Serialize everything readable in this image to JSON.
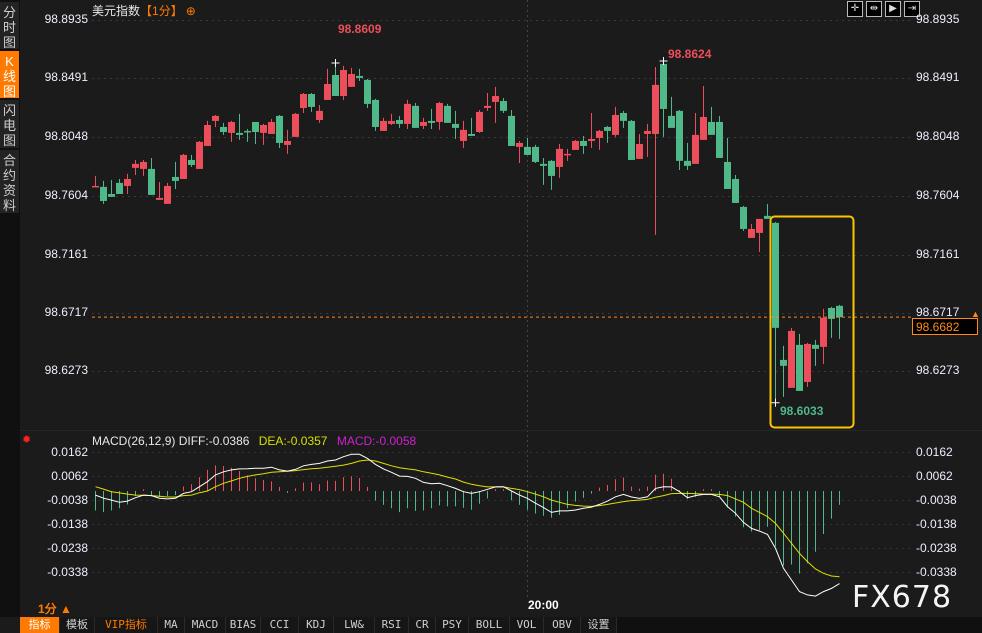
{
  "sidebar": {
    "tabs": [
      {
        "label": "分时图",
        "active": false
      },
      {
        "label": "K线图",
        "active": true
      },
      {
        "label": "闪电图",
        "active": false
      },
      {
        "label": "合约资料",
        "active": false
      }
    ]
  },
  "header": {
    "symbol": "美元指数",
    "timeframe": "【1分】",
    "add_icon": "⊕"
  },
  "toolbar_icons": [
    "crosshair-icon",
    "zoom-range-icon",
    "play-forward-icon",
    "jump-end-icon"
  ],
  "price_axis": {
    "ticks": [
      "98.8935",
      "98.8491",
      "98.8048",
      "98.7604",
      "98.7161",
      "98.6717",
      "98.6273"
    ]
  },
  "current_price": "98.6682",
  "annotations": {
    "high1": "98.8609",
    "high2": "98.8624",
    "low": "98.6033"
  },
  "colors": {
    "up": "#ec4f5b",
    "down": "#4fb98a",
    "highlight_box": "#ffc400",
    "accent": "#ff7a00",
    "diff": "#ffffff",
    "dea": "#e0e000"
  },
  "candles": [
    [
      98.767,
      98.7753,
      98.767,
      98.7677
    ],
    [
      98.767,
      98.7715,
      98.7541,
      98.7563
    ],
    [
      98.7616,
      98.7723,
      98.7594,
      98.7594
    ],
    [
      98.77,
      98.773,
      98.7616,
      98.7616
    ],
    [
      98.7677,
      98.7768,
      98.7616,
      98.773
    ],
    [
      98.7814,
      98.7874,
      98.776,
      98.7844
    ],
    [
      98.7806,
      98.7874,
      98.7753,
      98.7859
    ],
    [
      98.7806,
      98.7889,
      98.7609,
      98.7609
    ],
    [
      98.7571,
      98.7707,
      98.7571,
      98.7586
    ],
    [
      98.7541,
      98.77,
      98.7541,
      98.7677
    ],
    [
      98.7745,
      98.7859,
      98.7654,
      98.7715
    ],
    [
      98.773,
      98.792,
      98.773,
      98.7912
    ],
    [
      98.7874,
      98.7912,
      98.7821,
      98.7836
    ],
    [
      98.7806,
      98.8018,
      98.7806,
      98.8011
    ],
    [
      98.798,
      98.817,
      98.798,
      98.8139
    ],
    [
      98.817,
      98.8215,
      98.8124,
      98.8208
    ],
    [
      98.8124,
      98.8155,
      98.8064,
      98.8086
    ],
    [
      98.8079,
      98.817,
      98.8011,
      98.8162
    ],
    [
      98.8079,
      98.8223,
      98.8026,
      98.8064
    ],
    [
      98.8094,
      98.8109,
      98.8011,
      98.8086
    ],
    [
      98.8162,
      98.8162,
      98.7995,
      98.8086
    ],
    [
      98.8079,
      98.8147,
      98.7988,
      98.8139
    ],
    [
      98.8071,
      98.8185,
      98.8071,
      98.8162
    ],
    [
      98.8208,
      98.8215,
      98.7965,
      98.8003
    ],
    [
      98.7988,
      98.8102,
      98.792,
      98.8018
    ],
    [
      98.8049,
      98.823,
      98.8049,
      98.8223
    ],
    [
      98.8268,
      98.8382,
      98.823,
      98.8374
    ],
    [
      98.8374,
      98.8382,
      98.8238,
      98.8276
    ],
    [
      98.8177,
      98.8291,
      98.8155,
      98.8246
    ],
    [
      98.8329,
      98.8564,
      98.8329,
      98.845
    ],
    [
      98.8518,
      98.8609,
      98.8359,
      98.8359
    ],
    [
      98.8359,
      98.8587,
      98.8329,
      98.8556
    ],
    [
      98.8428,
      98.8572,
      98.8428,
      98.8526
    ],
    [
      98.8511,
      98.8564,
      98.8473,
      98.8496
    ],
    [
      98.8481,
      98.8488,
      98.8268,
      98.8299
    ],
    [
      98.8329,
      98.8337,
      98.8094,
      98.8124
    ],
    [
      98.8094,
      98.8193,
      98.8094,
      98.817
    ],
    [
      98.8147,
      98.8223,
      98.8139,
      98.817
    ],
    [
      98.8177,
      98.8208,
      98.8117,
      98.8147
    ],
    [
      98.8147,
      98.8329,
      98.8109,
      98.8299
    ],
    [
      98.8284,
      98.8306,
      98.8117,
      98.8117
    ],
    [
      98.8132,
      98.8193,
      98.8109,
      98.8162
    ],
    [
      98.817,
      98.8261,
      98.8109,
      98.8155
    ],
    [
      98.8162,
      98.8314,
      98.8102,
      98.8306
    ],
    [
      98.8284,
      98.8299,
      98.8155,
      98.8155
    ],
    [
      98.8147,
      98.8246,
      98.8033,
      98.8117
    ],
    [
      98.8018,
      98.817,
      98.7965,
      98.8102
    ],
    [
      98.8071,
      98.8193,
      98.8056,
      98.8056
    ],
    [
      98.8086,
      98.8253,
      98.8079,
      98.8238
    ],
    [
      98.8268,
      98.8382,
      98.8246,
      98.8284
    ],
    [
      98.8314,
      98.8428,
      98.8155,
      98.8359
    ],
    [
      98.8321,
      98.8344,
      98.823,
      98.8246
    ],
    [
      98.8208,
      98.8253,
      98.798,
      98.798
    ],
    [
      98.7973,
      98.8018,
      98.7851,
      98.8003
    ],
    [
      98.7973,
      98.8041,
      98.7912,
      98.7912
    ],
    [
      98.7973,
      98.7988,
      98.7851,
      98.7859
    ],
    [
      98.7844,
      98.7889,
      98.7685,
      98.7829
    ],
    [
      98.7867,
      98.7874,
      98.7647,
      98.7753
    ],
    [
      98.7821,
      98.7995,
      98.7738,
      98.7958
    ],
    [
      98.7912,
      98.7958,
      98.7867,
      98.792
    ],
    [
      98.795,
      98.8026,
      98.795,
      98.8018
    ],
    [
      98.8018,
      98.8056,
      98.792,
      98.798
    ],
    [
      98.8018,
      98.823,
      98.7965,
      98.8033
    ],
    [
      98.8041,
      98.8102,
      98.795,
      98.8094
    ],
    [
      98.8124,
      98.8132,
      98.8003,
      98.8094
    ],
    [
      98.8064,
      98.8276,
      98.8049,
      98.8215
    ],
    [
      98.823,
      98.8246,
      98.8117,
      98.817
    ],
    [
      98.817,
      98.8177,
      98.7874,
      98.7874
    ],
    [
      98.7882,
      98.8071,
      98.7882,
      98.7995
    ],
    [
      98.8071,
      98.8147,
      98.7897,
      98.8094
    ],
    [
      98.8071,
      98.8579,
      98.7306,
      98.8443
    ],
    [
      98.8602,
      98.8624,
      98.8049,
      98.8261
    ],
    [
      98.8208,
      98.8352,
      98.8117,
      98.8117
    ],
    [
      98.8246,
      98.8253,
      98.7798,
      98.7867
    ],
    [
      98.7867,
      98.8003,
      98.7798,
      98.7829
    ],
    [
      98.7844,
      98.823,
      98.7844,
      98.8064
    ],
    [
      98.8026,
      98.8435,
      98.8026,
      98.82
    ],
    [
      98.8162,
      98.8276,
      98.8064,
      98.8064
    ],
    [
      98.8162,
      98.8208,
      98.7889,
      98.7889
    ],
    [
      98.7859,
      98.8041,
      98.7654,
      98.7654
    ],
    [
      98.773,
      98.776,
      98.7548,
      98.7548
    ],
    [
      98.7518,
      98.7526,
      98.7336,
      98.7351
    ],
    [
      98.7283,
      98.7389,
      98.7283,
      98.7351
    ],
    [
      98.7321,
      98.7427,
      98.7177,
      98.7427
    ],
    [
      98.745,
      98.7541,
      98.7427,
      98.7427
    ],
    [
      98.7397,
      98.7404,
      98.6033,
      98.6601
    ],
    [
      98.6358,
      98.6464,
      98.6078,
      98.6313
    ],
    [
      98.6146,
      98.6601,
      98.6146,
      98.6578
    ],
    [
      98.6472,
      98.6555,
      98.6123,
      98.6123
    ],
    [
      98.6191,
      98.6487,
      98.6154,
      98.6479
    ],
    [
      98.6472,
      98.651,
      98.6313,
      98.6442
    ],
    [
      98.6457,
      98.6745,
      98.6328,
      98.6677
    ],
    [
      98.6752,
      98.676,
      98.6525,
      98.6669
    ],
    [
      98.6768,
      98.6775,
      98.6517,
      98.6682
    ]
  ],
  "macd": {
    "label": "MACD(26,12,9)",
    "diff_label": "DIFF:-0.0386",
    "dea_label": "DEA:-0.0357",
    "macd_label": "MACD:-0.0058",
    "ticks": [
      "0.0162",
      "0.0062",
      "-0.0038",
      "-0.0138",
      "-0.0238",
      "-0.0338"
    ],
    "diff": [
      -0.0017,
      -0.003,
      -0.0038,
      -0.0047,
      -0.0042,
      -0.0028,
      -0.0017,
      -0.0019,
      -0.003,
      -0.0033,
      -0.003,
      -0.001,
      -0.0003,
      0.0018,
      0.0039,
      0.0067,
      0.008,
      0.0088,
      0.0092,
      0.0093,
      0.0095,
      0.0095,
      0.0099,
      0.0088,
      0.0083,
      0.009,
      0.0105,
      0.0111,
      0.0115,
      0.0125,
      0.0129,
      0.0143,
      0.0153,
      0.0153,
      0.0136,
      0.0111,
      0.0092,
      0.0078,
      0.0062,
      0.0061,
      0.0053,
      0.0036,
      0.003,
      0.0032,
      0.0022,
      0.0011,
      -0.0003,
      -0.001,
      -0.0003,
      0.0007,
      0.0017,
      0.0018,
      0.0,
      -0.0017,
      -0.0031,
      -0.0051,
      -0.0069,
      -0.0089,
      -0.0083,
      -0.0083,
      -0.0079,
      -0.0072,
      -0.0067,
      -0.0056,
      -0.0042,
      -0.0024,
      -0.0014,
      -0.0025,
      -0.0031,
      -0.0024,
      0.0011,
      0.0018,
      0.0017,
      -0.0003,
      -0.0028,
      -0.0019,
      -0.0014,
      -0.0014,
      -0.0024,
      -0.0065,
      -0.0093,
      -0.0131,
      -0.0156,
      -0.0167,
      -0.0181,
      -0.0239,
      -0.0322,
      -0.0371,
      -0.0419,
      -0.0433,
      -0.0438,
      -0.0419,
      -0.0406,
      -0.0386
    ],
    "dea": [
      0.0018,
      0.0008,
      -0.0003,
      -0.0008,
      -0.0013,
      -0.0017,
      -0.0018,
      -0.0019,
      -0.0022,
      -0.0025,
      -0.0025,
      -0.0019,
      -0.0017,
      -0.0007,
      0.0,
      0.0018,
      0.0032,
      0.0042,
      0.0053,
      0.0061,
      0.0067,
      0.0072,
      0.0078,
      0.008,
      0.0082,
      0.0085,
      0.0089,
      0.0093,
      0.0095,
      0.0099,
      0.0103,
      0.0108,
      0.0115,
      0.0125,
      0.0129,
      0.0125,
      0.0115,
      0.0105,
      0.0097,
      0.0092,
      0.0088,
      0.008,
      0.0074,
      0.0067,
      0.0058,
      0.005,
      0.0037,
      0.0028,
      0.0022,
      0.0017,
      0.0017,
      0.0017,
      0.0011,
      0.0006,
      -0.0003,
      -0.0013,
      -0.0024,
      -0.0038,
      -0.0047,
      -0.0056,
      -0.006,
      -0.0063,
      -0.0064,
      -0.0061,
      -0.0056,
      -0.005,
      -0.0044,
      -0.004,
      -0.0038,
      -0.0035,
      -0.0026,
      -0.0019,
      -0.0011,
      -0.001,
      -0.001,
      -0.0011,
      -0.0013,
      -0.0013,
      -0.0014,
      -0.0019,
      -0.0033,
      -0.0047,
      -0.0072,
      -0.0089,
      -0.0107,
      -0.0135,
      -0.0176,
      -0.0218,
      -0.026,
      -0.0294,
      -0.0325,
      -0.0343,
      -0.0354,
      -0.0357
    ],
    "hist": [
      -0.0081,
      -0.0088,
      -0.0081,
      -0.0072,
      -0.0056,
      -0.0021,
      0.0007,
      -0.0021,
      -0.0025,
      -0.0021,
      -0.0017,
      0.0019,
      0.0028,
      0.0058,
      0.0088,
      0.0107,
      0.0104,
      0.0097,
      0.0083,
      0.0065,
      0.0053,
      0.0046,
      0.004,
      0.0017,
      -0.0003,
      0.0011,
      0.0035,
      0.0036,
      0.0028,
      0.0044,
      0.0042,
      0.0058,
      0.0061,
      0.0054,
      0.0017,
      -0.0039,
      -0.0058,
      -0.0072,
      -0.0088,
      -0.0072,
      -0.0083,
      -0.0081,
      -0.0072,
      -0.006,
      -0.0064,
      -0.0064,
      -0.007,
      -0.0078,
      -0.0053,
      -0.0031,
      0.0003,
      0.0003,
      -0.0039,
      -0.0058,
      -0.0078,
      -0.0094,
      -0.0103,
      -0.0111,
      -0.01,
      -0.0072,
      -0.0044,
      -0.0028,
      -0.0011,
      0.0014,
      0.0025,
      0.0049,
      0.0056,
      0.0018,
      0.001,
      0.0018,
      0.0068,
      0.0072,
      0.0051,
      0.0004,
      -0.0033,
      -0.0024,
      0.0003,
      0.0003,
      -0.0025,
      -0.0069,
      -0.0107,
      -0.0151,
      -0.0169,
      -0.0163,
      -0.0149,
      -0.0232,
      -0.0311,
      -0.0306,
      -0.0344,
      -0.0301,
      -0.0253,
      -0.0179,
      -0.0115,
      -0.0058
    ]
  },
  "time_axis": {
    "label": "20:00"
  },
  "timeframe_bottom": "1分 ▲",
  "watermark": "FX678",
  "bottom_tabs": [
    {
      "label": "指标",
      "type": "active"
    },
    {
      "label": "模板",
      "type": "normal"
    },
    {
      "label": "VIP指标",
      "type": "vip"
    },
    {
      "label": "MA",
      "type": "normal"
    },
    {
      "label": "MACD",
      "type": "normal"
    },
    {
      "label": "BIAS",
      "type": "normal"
    },
    {
      "label": "CCI",
      "type": "normal"
    },
    {
      "label": "KDJ",
      "type": "normal"
    },
    {
      "label": "LW&",
      "type": "normal"
    },
    {
      "label": "RSI",
      "type": "normal"
    },
    {
      "label": "CR",
      "type": "normal"
    },
    {
      "label": "PSY",
      "type": "normal"
    },
    {
      "label": "BOLL",
      "type": "normal"
    },
    {
      "label": "VOL",
      "type": "normal"
    },
    {
      "label": "OBV",
      "type": "normal"
    },
    {
      "label": "设置",
      "type": "normal"
    }
  ]
}
